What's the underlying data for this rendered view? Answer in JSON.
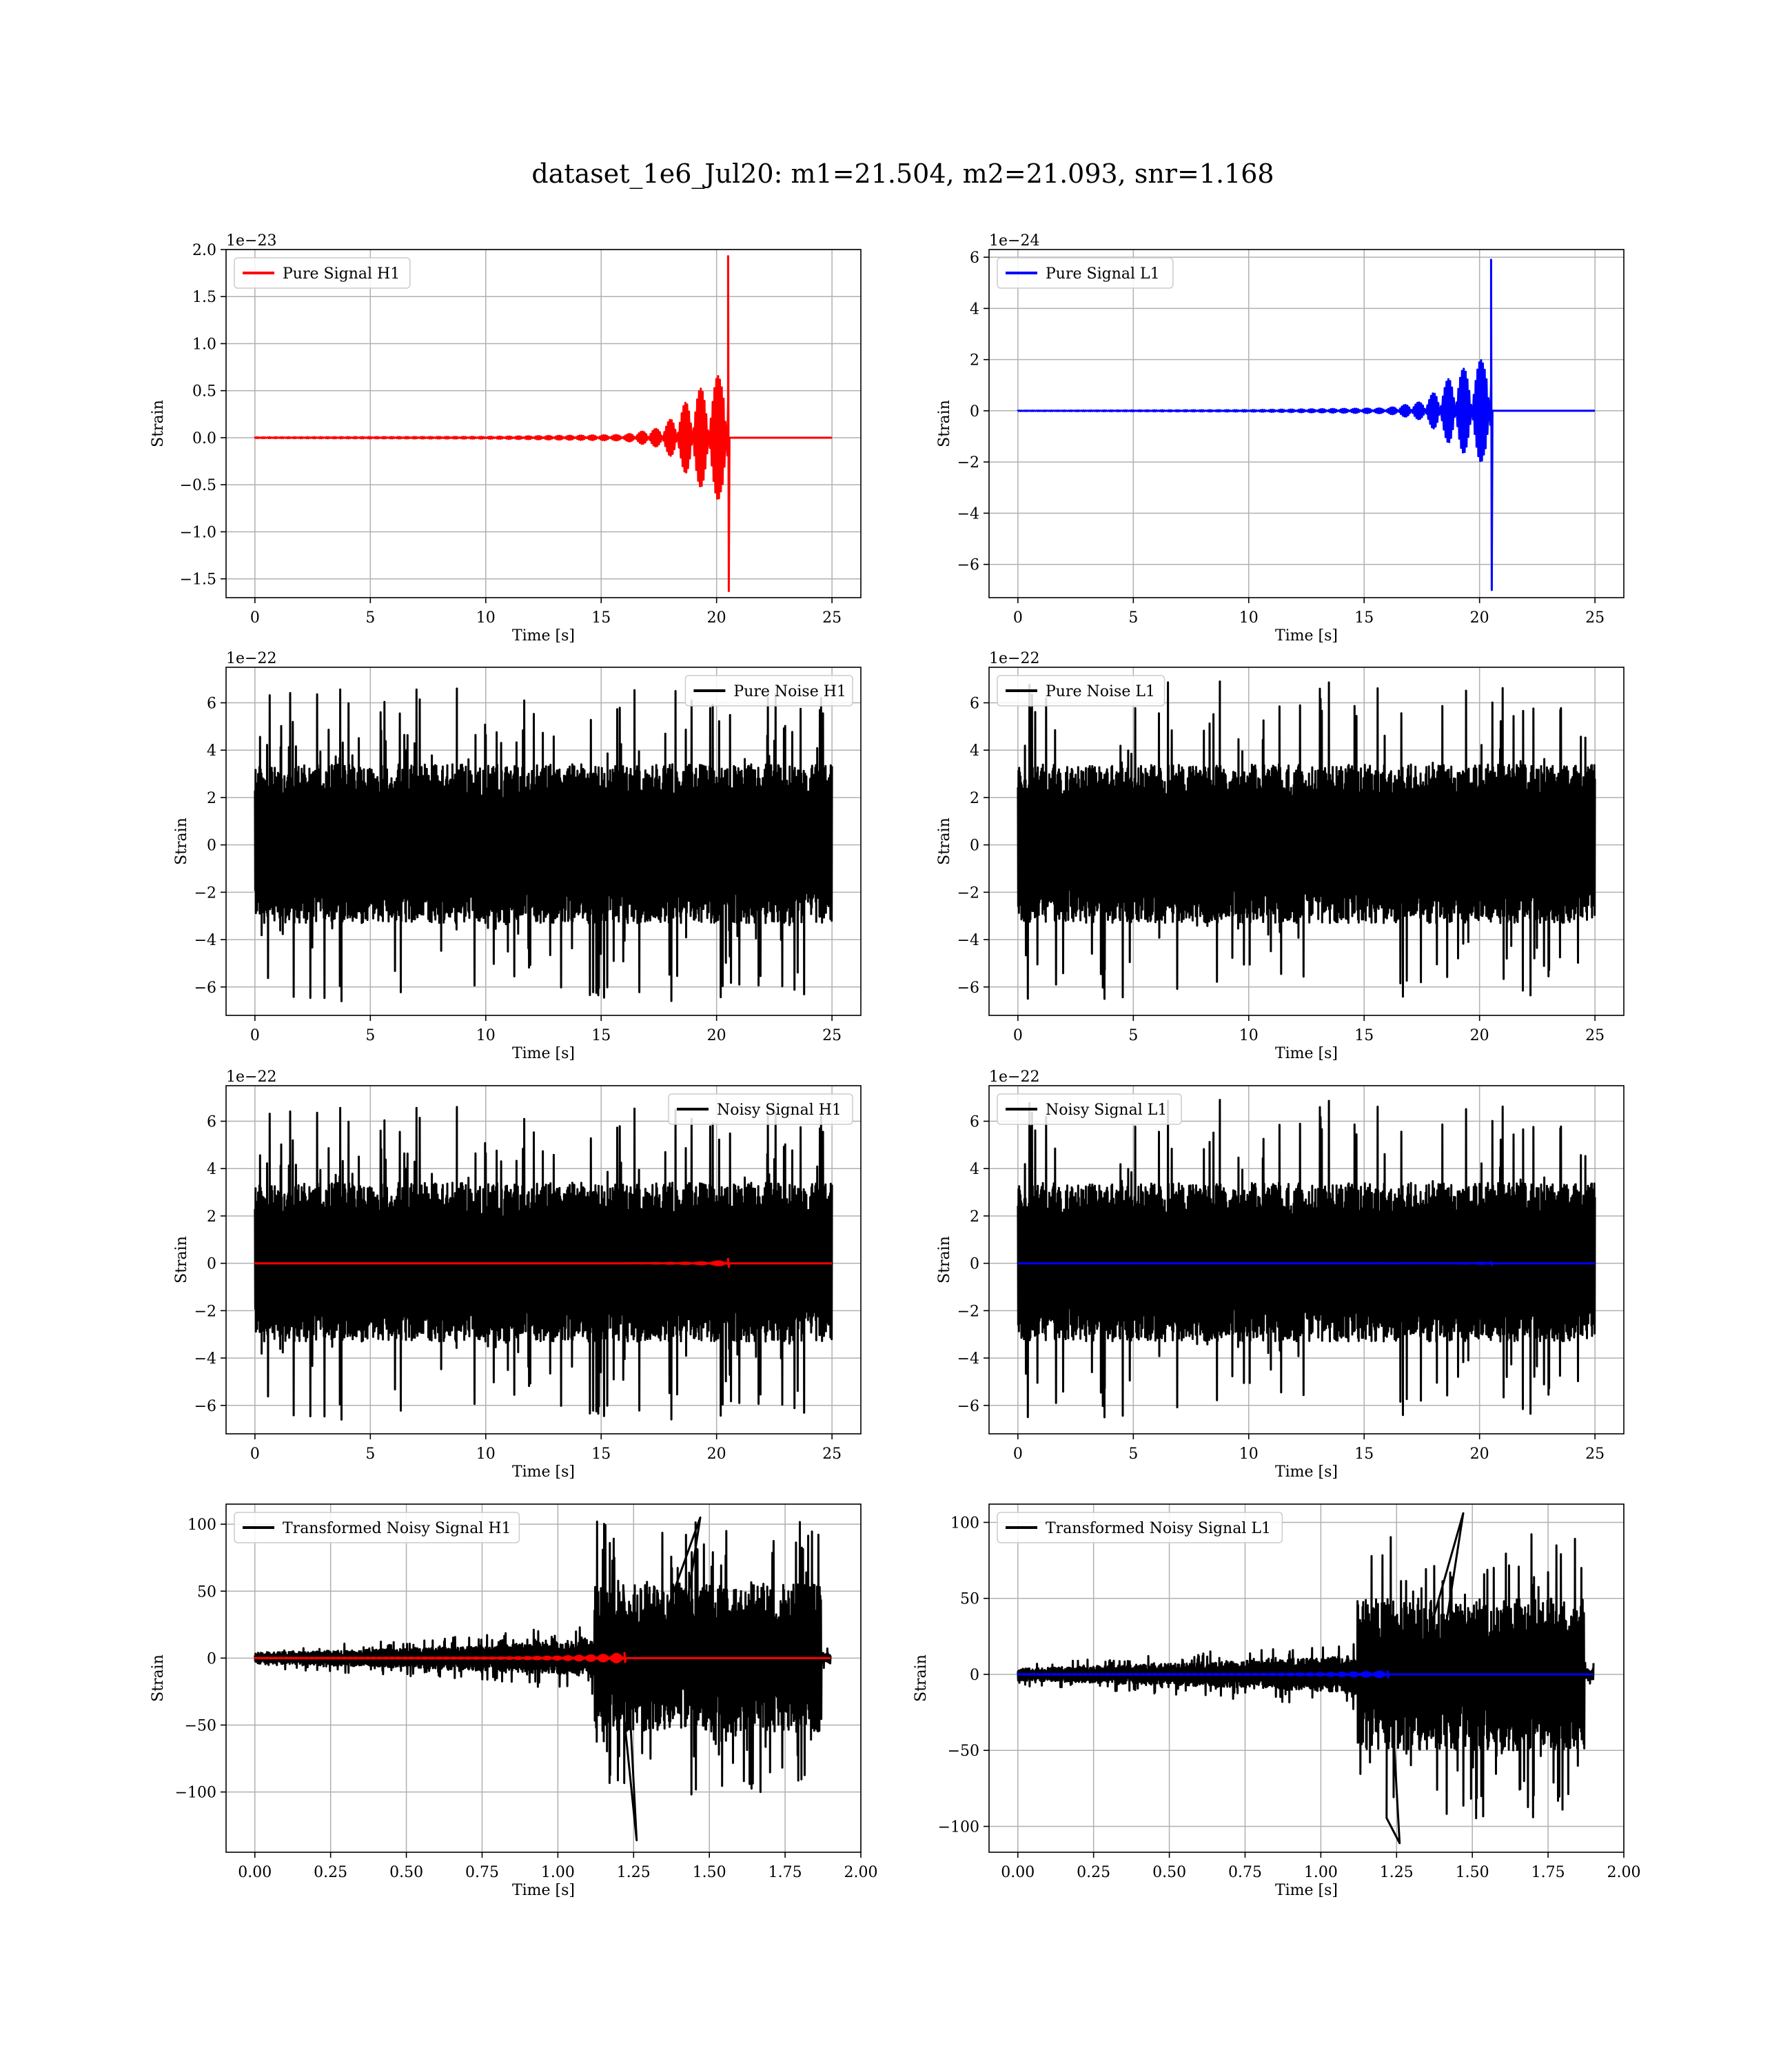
{
  "figure": {
    "title": "dataset_1e6_Jul20: m1=21.504, m2=21.093, snr=1.168"
  },
  "chart_data": [
    {
      "id": "pure-signal-h1",
      "type": "line",
      "xlabel": "Time [s]",
      "ylabel": "Strain",
      "offset_text": "1e−23",
      "grid": true,
      "legend_position": "top-left",
      "xlim": [
        -1.25,
        26.25
      ],
      "ylim": [
        -1.7,
        2.0
      ],
      "xticks": [
        0,
        5,
        10,
        15,
        20,
        25
      ],
      "xtick_labels": [
        "0",
        "5",
        "10",
        "15",
        "20",
        "25"
      ],
      "yticks": [
        -1.5,
        -1.0,
        -0.5,
        0.0,
        0.5,
        1.0,
        1.5,
        2.0
      ],
      "ytick_labels": [
        "−1.5",
        "−1.0",
        "−0.5",
        "0.0",
        "0.5",
        "1.0",
        "1.5",
        "2.0"
      ],
      "series": [
        {
          "name": "Pure Signal H1",
          "color": "#ff0000",
          "kind": "chirp",
          "t_start": 0,
          "t_end": 25,
          "merger_time": 20.5,
          "peak_positive": 1.93,
          "peak_negative": -1.63,
          "envelope_points": [
            [
              0,
              0.005
            ],
            [
              10,
              0.01
            ],
            [
              16,
              0.03
            ],
            [
              17.5,
              0.1
            ],
            [
              18.3,
              0.25
            ],
            [
              19,
              0.5
            ],
            [
              19.7,
              0.55
            ],
            [
              20.2,
              0.7
            ],
            [
              20.45,
              1.2
            ]
          ]
        }
      ]
    },
    {
      "id": "pure-signal-l1",
      "type": "line",
      "xlabel": "Time [s]",
      "ylabel": "Strain",
      "offset_text": "1e−24",
      "grid": true,
      "legend_position": "top-left",
      "xlim": [
        -1.25,
        26.25
      ],
      "ylim": [
        -7.3,
        6.3
      ],
      "xticks": [
        0,
        5,
        10,
        15,
        20,
        25
      ],
      "xtick_labels": [
        "0",
        "5",
        "10",
        "15",
        "20",
        "25"
      ],
      "yticks": [
        -6,
        -4,
        -2,
        0,
        2,
        4,
        6
      ],
      "ytick_labels": [
        "−6",
        "−4",
        "−2",
        "0",
        "2",
        "4",
        "6"
      ],
      "series": [
        {
          "name": "Pure Signal L1",
          "color": "#0000ff",
          "kind": "chirp",
          "t_start": 0,
          "t_end": 25,
          "merger_time": 20.5,
          "peak_positive": 5.9,
          "peak_negative": -7.0,
          "envelope_points": [
            [
              0,
              0.01
            ],
            [
              10,
              0.03
            ],
            [
              16,
              0.1
            ],
            [
              17.5,
              0.35
            ],
            [
              18.3,
              0.9
            ],
            [
              19,
              1.6
            ],
            [
              19.7,
              1.7
            ],
            [
              20.2,
              2.1
            ],
            [
              20.45,
              3.5
            ]
          ]
        }
      ]
    },
    {
      "id": "pure-noise-h1",
      "type": "line",
      "xlabel": "Time [s]",
      "ylabel": "Strain",
      "offset_text": "1e−22",
      "grid": true,
      "legend_position": "top-right",
      "xlim": [
        -1.25,
        26.25
      ],
      "ylim": [
        -7.2,
        7.5
      ],
      "xticks": [
        0,
        5,
        10,
        15,
        20,
        25
      ],
      "xtick_labels": [
        "0",
        "5",
        "10",
        "15",
        "20",
        "25"
      ],
      "yticks": [
        -6,
        -4,
        -2,
        0,
        2,
        4,
        6
      ],
      "ytick_labels": [
        "−6",
        "−4",
        "−2",
        "0",
        "2",
        "4",
        "6"
      ],
      "series": [
        {
          "name": "Pure Noise H1",
          "color": "#000000",
          "kind": "noise",
          "t_start": 0,
          "t_end": 25,
          "band_upper": 3.4,
          "band_lower": -3.3,
          "max": 6.6,
          "min": -6.6,
          "seed": 11
        }
      ]
    },
    {
      "id": "pure-noise-l1",
      "type": "line",
      "xlabel": "Time [s]",
      "ylabel": "Strain",
      "offset_text": "1e−22",
      "grid": true,
      "legend_position": "top-left",
      "xlim": [
        -1.25,
        26.25
      ],
      "ylim": [
        -7.2,
        7.5
      ],
      "xticks": [
        0,
        5,
        10,
        15,
        20,
        25
      ],
      "xtick_labels": [
        "0",
        "5",
        "10",
        "15",
        "20",
        "25"
      ],
      "yticks": [
        -6,
        -4,
        -2,
        0,
        2,
        4,
        6
      ],
      "ytick_labels": [
        "−6",
        "−4",
        "−2",
        "0",
        "2",
        "4",
        "6"
      ],
      "series": [
        {
          "name": "Pure Noise L1",
          "color": "#000000",
          "kind": "noise",
          "t_start": 0,
          "t_end": 25,
          "band_upper": 3.4,
          "band_lower": -3.3,
          "max": 6.9,
          "min": -6.5,
          "seed": 23
        }
      ]
    },
    {
      "id": "noisy-signal-h1",
      "type": "line",
      "xlabel": "Time [s]",
      "ylabel": "Strain",
      "offset_text": "1e−22",
      "grid": true,
      "legend_position": "top-right",
      "xlim": [
        -1.25,
        26.25
      ],
      "ylim": [
        -7.2,
        7.5
      ],
      "xticks": [
        0,
        5,
        10,
        15,
        20,
        25
      ],
      "xtick_labels": [
        "0",
        "5",
        "10",
        "15",
        "20",
        "25"
      ],
      "yticks": [
        -6,
        -4,
        -2,
        0,
        2,
        4,
        6
      ],
      "ytick_labels": [
        "−6",
        "−4",
        "−2",
        "0",
        "2",
        "4",
        "6"
      ],
      "series": [
        {
          "name": "Noisy Signal H1",
          "color": "#000000",
          "kind": "noise",
          "t_start": 0,
          "t_end": 25,
          "band_upper": 3.4,
          "band_lower": -3.3,
          "max": 6.6,
          "min": -6.6,
          "seed": 11
        },
        {
          "name": "",
          "color": "#ff0000",
          "kind": "chirp",
          "t_start": 0,
          "t_end": 25,
          "merger_time": 20.5,
          "peak_positive": 0.19,
          "peak_negative": -0.16,
          "envelope_points": [
            [
              0,
              0.0005
            ],
            [
              16,
              0.003
            ],
            [
              18.3,
              0.025
            ],
            [
              19.7,
              0.055
            ],
            [
              20.45,
              0.12
            ]
          ]
        }
      ]
    },
    {
      "id": "noisy-signal-l1",
      "type": "line",
      "xlabel": "Time [s]",
      "ylabel": "Strain",
      "offset_text": "1e−22",
      "grid": true,
      "legend_position": "top-left",
      "xlim": [
        -1.25,
        26.25
      ],
      "ylim": [
        -7.2,
        7.5
      ],
      "xticks": [
        0,
        5,
        10,
        15,
        20,
        25
      ],
      "xtick_labels": [
        "0",
        "5",
        "10",
        "15",
        "20",
        "25"
      ],
      "yticks": [
        -6,
        -4,
        -2,
        0,
        2,
        4,
        6
      ],
      "ytick_labels": [
        "−6",
        "−4",
        "−2",
        "0",
        "2",
        "4",
        "6"
      ],
      "series": [
        {
          "name": "Noisy Signal L1",
          "color": "#000000",
          "kind": "noise",
          "t_start": 0,
          "t_end": 25,
          "band_upper": 3.4,
          "band_lower": -3.3,
          "max": 6.9,
          "min": -6.5,
          "seed": 23
        },
        {
          "name": "",
          "color": "#0000ff",
          "kind": "chirp",
          "t_start": 0,
          "t_end": 25,
          "merger_time": 20.5,
          "peak_positive": 0.06,
          "peak_negative": -0.07,
          "envelope_points": [
            [
              0,
              0.0001
            ],
            [
              16,
              0.001
            ],
            [
              18.3,
              0.009
            ],
            [
              19.7,
              0.017
            ],
            [
              20.45,
              0.035
            ]
          ]
        }
      ]
    },
    {
      "id": "transformed-noisy-signal-h1",
      "type": "line",
      "xlabel": "Time [s]",
      "ylabel": "Strain",
      "offset_text": "",
      "grid": true,
      "legend_position": "top-left",
      "xlim": [
        -0.095,
        2.0
      ],
      "ylim": [
        -145,
        115
      ],
      "xticks": [
        0.0,
        0.25,
        0.5,
        0.75,
        1.0,
        1.25,
        1.5,
        1.75,
        2.0
      ],
      "xtick_labels": [
        "0.00",
        "0.25",
        "0.50",
        "0.75",
        "1.00",
        "1.25",
        "1.50",
        "1.75",
        "2.00"
      ],
      "yticks": [
        -100,
        -50,
        0,
        50,
        100
      ],
      "ytick_labels": [
        "−100",
        "−50",
        "0",
        "50",
        "100"
      ],
      "series": [
        {
          "name": "Transformed Noisy Signal H1",
          "color": "#000000",
          "kind": "whitened",
          "t_start": 0,
          "t_end": 1.9,
          "step_time": 1.12,
          "tail_end": 1.87,
          "pre_envelope": [
            [
              0,
              4
            ],
            [
              0.5,
              7
            ],
            [
              1.0,
              12
            ],
            [
              1.12,
              15
            ]
          ],
          "post_band": 55,
          "max": 105,
          "min": -136,
          "seed": 5
        },
        {
          "name": "",
          "color": "#ff0000",
          "kind": "chirp",
          "t_start": 0,
          "t_end": 1.9,
          "merger_time": 1.22,
          "peak_positive": 4,
          "peak_negative": -3,
          "envelope_points": [
            [
              0,
              0.2
            ],
            [
              0.8,
              0.5
            ],
            [
              1.0,
              1.2
            ],
            [
              1.15,
              2.5
            ],
            [
              1.21,
              3.5
            ]
          ]
        }
      ]
    },
    {
      "id": "transformed-noisy-signal-l1",
      "type": "line",
      "xlabel": "Time [s]",
      "ylabel": "Strain",
      "offset_text": "",
      "grid": true,
      "legend_position": "top-left",
      "xlim": [
        -0.095,
        2.0
      ],
      "ylim": [
        -117,
        112
      ],
      "xticks": [
        0.0,
        0.25,
        0.5,
        0.75,
        1.0,
        1.25,
        1.5,
        1.75,
        2.0
      ],
      "xtick_labels": [
        "0.00",
        "0.25",
        "0.50",
        "0.75",
        "1.00",
        "1.25",
        "1.50",
        "1.75",
        "2.00"
      ],
      "yticks": [
        -100,
        -50,
        0,
        50,
        100
      ],
      "ytick_labels": [
        "−100",
        "−50",
        "0",
        "50",
        "100"
      ],
      "series": [
        {
          "name": "Transformed Noisy Signal L1",
          "color": "#000000",
          "kind": "whitened",
          "t_start": 0,
          "t_end": 1.9,
          "step_time": 1.12,
          "tail_end": 1.87,
          "pre_envelope": [
            [
              0,
              4
            ],
            [
              0.5,
              7
            ],
            [
              1.0,
              11
            ],
            [
              1.12,
              13
            ]
          ],
          "post_band": 50,
          "max": 106,
          "min": -111,
          "seed": 9
        },
        {
          "name": "",
          "color": "#0000ff",
          "kind": "chirp",
          "t_start": 0,
          "t_end": 1.9,
          "merger_time": 1.22,
          "peak_positive": 2,
          "peak_negative": -2,
          "envelope_points": [
            [
              0,
              0.2
            ],
            [
              0.8,
              0.4
            ],
            [
              1.0,
              0.8
            ],
            [
              1.15,
              1.5
            ],
            [
              1.21,
              2
            ]
          ]
        }
      ]
    }
  ]
}
